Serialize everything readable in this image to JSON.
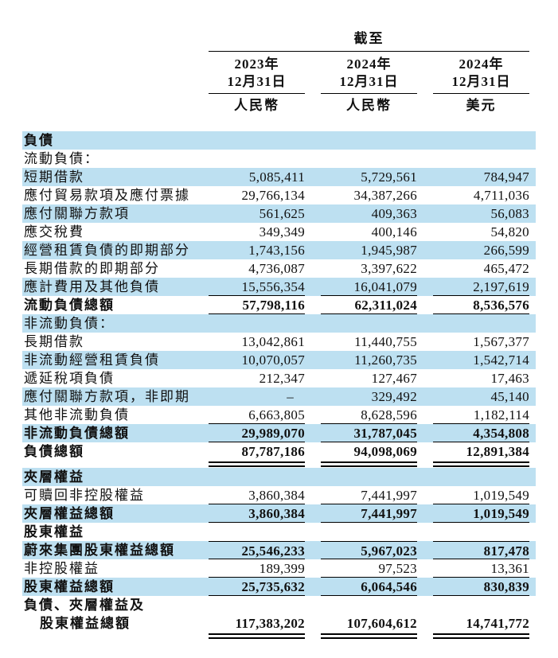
{
  "header": {
    "as_of_label": "截至",
    "columns": [
      {
        "year": "2023年",
        "date": "12月31日",
        "currency": "人民幣"
      },
      {
        "year": "2024年",
        "date": "12月31日",
        "currency": "人民幣"
      },
      {
        "year": "2024年",
        "date": "12月31日",
        "currency": "美元"
      }
    ]
  },
  "colors": {
    "row_highlight": "#BDE0F1",
    "text": "#111111",
    "rule": "#000000"
  },
  "table": {
    "rows": [
      {
        "label": "負債",
        "bg": "blue",
        "bold": true,
        "values": [
          "",
          "",
          ""
        ]
      },
      {
        "label": "流動負債：",
        "bg": "white",
        "values": [
          "",
          "",
          ""
        ]
      },
      {
        "label": "短期借款",
        "bg": "blue",
        "values": [
          "5,085,411",
          "5,729,561",
          "784,947"
        ]
      },
      {
        "label": "應付貿易款項及應付票據",
        "bg": "white",
        "values": [
          "29,766,134",
          "34,387,266",
          "4,711,036"
        ]
      },
      {
        "label": "應付關聯方款項",
        "bg": "blue",
        "values": [
          "561,625",
          "409,363",
          "56,083"
        ]
      },
      {
        "label": "應交稅費",
        "bg": "white",
        "values": [
          "349,349",
          "400,146",
          "54,820"
        ]
      },
      {
        "label": "經營租賃負債的即期部分",
        "bg": "blue",
        "values": [
          "1,743,156",
          "1,945,987",
          "266,599"
        ]
      },
      {
        "label": "長期借款的即期部分",
        "bg": "white",
        "values": [
          "4,736,087",
          "3,397,622",
          "465,472"
        ]
      },
      {
        "label": "應計費用及其他負債",
        "bg": "blue",
        "rule_bottom": true,
        "values": [
          "15,556,354",
          "16,041,079",
          "2,197,619"
        ]
      },
      {
        "label": "流動負債總額",
        "bg": "white",
        "bold": true,
        "rule_bottom": true,
        "values": [
          "57,798,116",
          "62,311,024",
          "8,536,576"
        ]
      },
      {
        "label": "非流動負債：",
        "bg": "blue",
        "values": [
          "",
          "",
          ""
        ]
      },
      {
        "label": "長期借款",
        "bg": "white",
        "values": [
          "13,042,861",
          "11,440,755",
          "1,567,377"
        ]
      },
      {
        "label": "非流動經營租賃負債",
        "bg": "blue",
        "values": [
          "10,070,057",
          "11,260,735",
          "1,542,714"
        ]
      },
      {
        "label": "遞延稅項負債",
        "bg": "white",
        "values": [
          "212,347",
          "127,467",
          "17,463"
        ]
      },
      {
        "label": "應付關聯方款項，非即期",
        "bg": "blue",
        "values": [
          "–",
          "329,492",
          "45,140"
        ]
      },
      {
        "label": "其他非流動負債",
        "bg": "white",
        "rule_bottom": true,
        "values": [
          "6,663,805",
          "8,628,596",
          "1,182,114"
        ]
      },
      {
        "label": "非流動負債總額",
        "bg": "blue",
        "bold": true,
        "rule_bottom": true,
        "values": [
          "29,989,070",
          "31,787,045",
          "4,354,808"
        ]
      },
      {
        "label": "負債總額",
        "bg": "white",
        "bold": true,
        "double_bottom": true,
        "values": [
          "87,787,186",
          "94,098,069",
          "12,891,384"
        ]
      },
      {
        "label": "夾層權益",
        "bg": "blue",
        "bold": true,
        "values": [
          "",
          "",
          ""
        ]
      },
      {
        "label": "可贖回非控股權益",
        "bg": "white",
        "rule_bottom": true,
        "values": [
          "3,860,384",
          "7,441,997",
          "1,019,549"
        ]
      },
      {
        "label": "夾層權益總額",
        "bg": "blue",
        "bold": true,
        "rule_bottom": true,
        "values": [
          "3,860,384",
          "7,441,997",
          "1,019,549"
        ]
      },
      {
        "label": "股東權益",
        "bg": "white",
        "bold": true,
        "values": [
          "",
          "",
          ""
        ]
      },
      {
        "label": "蔚來集團股東權益總額",
        "bg": "blue",
        "bold": true,
        "rule_top": true,
        "rule_bottom": true,
        "values": [
          "25,546,233",
          "5,967,023",
          "817,478"
        ]
      },
      {
        "label": "非控股權益",
        "bg": "white",
        "rule_bottom": true,
        "values": [
          "189,399",
          "97,523",
          "13,361"
        ]
      },
      {
        "label": "股東權益總額",
        "bg": "blue",
        "bold": true,
        "rule_bottom": true,
        "values": [
          "25,735,632",
          "6,064,546",
          "830,839"
        ]
      },
      {
        "label": "負債、夾層權益及",
        "label2": "股東權益總額",
        "bg": "white",
        "bold": true,
        "double_bottom": true,
        "values": [
          "117,383,202",
          "107,604,612",
          "14,741,772"
        ]
      }
    ]
  }
}
